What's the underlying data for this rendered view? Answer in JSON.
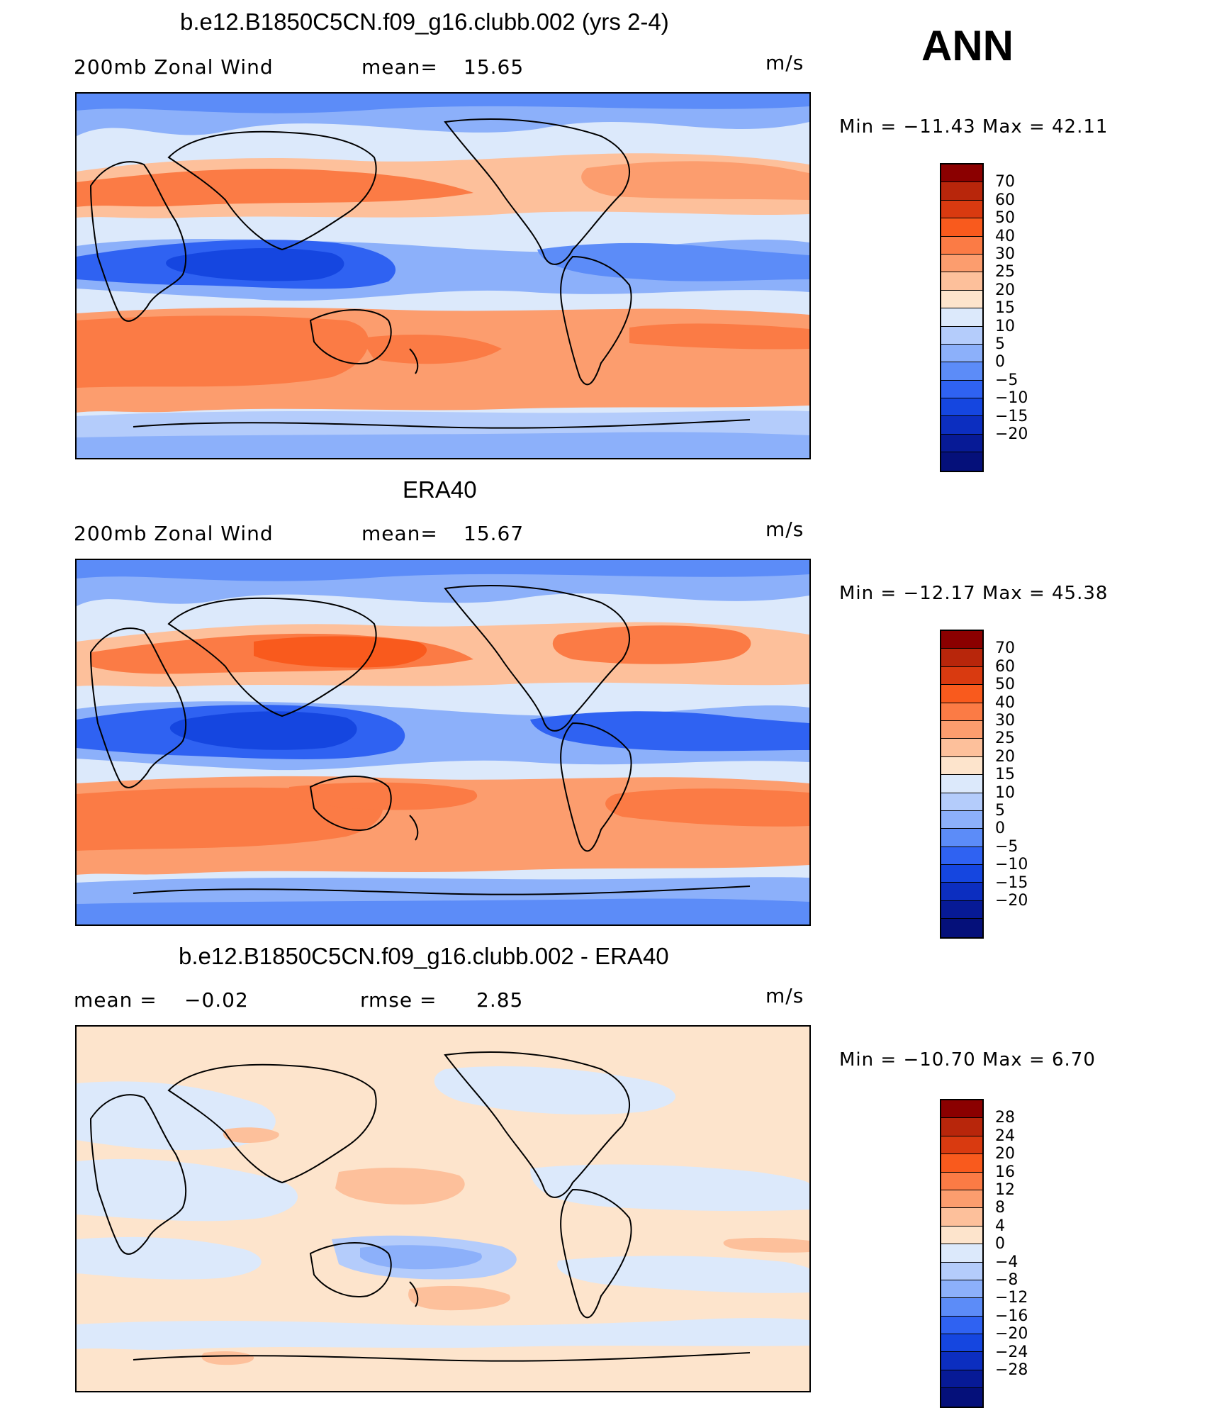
{
  "season": "ANN",
  "units": "m/s",
  "panels": [
    {
      "title": "b.e12.B1850C5CN.f09_g16.clubb.002 (yrs 2-4)",
      "left_label": "200mb Zonal Wind",
      "mid_label": "mean=",
      "mid_value": "15.65",
      "min_max": "Min  =  −11.43  Max  =    42.11",
      "colorbar": {
        "labels": [
          "70",
          "60",
          "50",
          "40",
          "30",
          "25",
          "20",
          "15",
          "10",
          "5",
          "0",
          "−5",
          "−10",
          "−15",
          "−20"
        ],
        "colors": [
          "#8b0000",
          "#b8260b",
          "#d93a10",
          "#f95a1d",
          "#fb7b45",
          "#fc9d6e",
          "#fdc09b",
          "#fde4cc",
          "#dce9fb",
          "#b4ccfb",
          "#8cb0fa",
          "#5c8cf8",
          "#2f62f2",
          "#1546e0",
          "#0c2ec0",
          "#071a96",
          "#05107a"
        ]
      }
    },
    {
      "title": "ERA40",
      "left_label": "200mb Zonal Wind",
      "mid_label": "mean=",
      "mid_value": "15.67",
      "min_max": "Min  =  −12.17  Max  =    45.38",
      "colorbar": {
        "labels": [
          "70",
          "60",
          "50",
          "40",
          "30",
          "25",
          "20",
          "15",
          "10",
          "5",
          "0",
          "−5",
          "−10",
          "−15",
          "−20"
        ],
        "colors": [
          "#8b0000",
          "#b8260b",
          "#d93a10",
          "#f95a1d",
          "#fb7b45",
          "#fc9d6e",
          "#fdc09b",
          "#fde4cc",
          "#dce9fb",
          "#b4ccfb",
          "#8cb0fa",
          "#5c8cf8",
          "#2f62f2",
          "#1546e0",
          "#0c2ec0",
          "#071a96",
          "#05107a"
        ]
      }
    },
    {
      "title": "b.e12.B1850C5CN.f09_g16.clubb.002 - ERA40",
      "left_label": "mean  =",
      "left_value": "−0.02",
      "mid_label": "rmse  =",
      "mid_value": "2.85",
      "min_max": "Min  =  −10.70  Max  =     6.70",
      "colorbar": {
        "labels": [
          "28",
          "24",
          "20",
          "16",
          "12",
          "8",
          "4",
          "0",
          "−4",
          "−8",
          "−12",
          "−16",
          "−20",
          "−24",
          "−28"
        ],
        "colors": [
          "#8b0000",
          "#b8260b",
          "#d93a10",
          "#f95a1d",
          "#fb7b45",
          "#fc9d6e",
          "#fdc09b",
          "#fde4cc",
          "#dce9fb",
          "#b4ccfb",
          "#8cb0fa",
          "#5c8cf8",
          "#2f62f2",
          "#1546e0",
          "#0c2ec0",
          "#071a96",
          "#05107a"
        ]
      }
    }
  ]
}
